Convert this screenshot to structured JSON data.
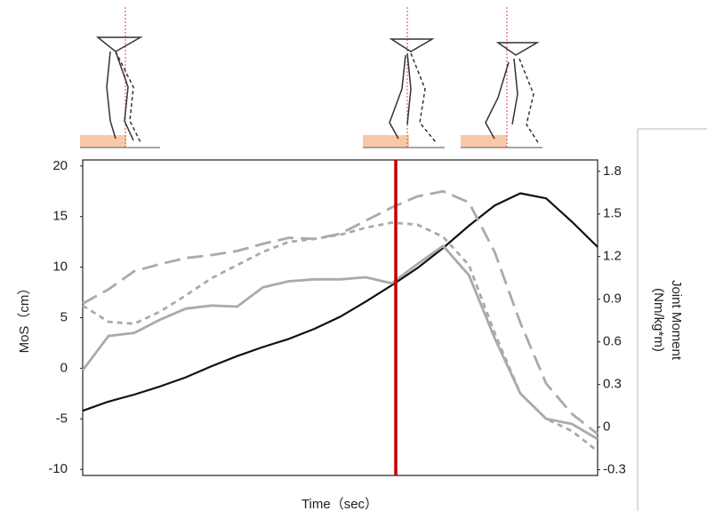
{
  "chart_data": {
    "type": "line",
    "ylabel": "MoS（cm）",
    "y2label_lines": [
      "Joint Moment",
      "(Nm/kg*m)"
    ],
    "xlabel": "Time（sec）",
    "ylim": [
      -10.6,
      20.6
    ],
    "yticks": [
      20,
      15,
      10,
      5,
      0,
      -5,
      -10
    ],
    "y2lim": [
      -0.34,
      1.88
    ],
    "y2ticks": [
      1.8,
      1.5,
      1.2,
      0.9,
      0.6,
      0.3,
      0,
      -0.3
    ],
    "series": [
      {
        "color": "#111111",
        "dash": "solid",
        "values": [
          -4.2,
          -3.3,
          -2.6,
          -1.8,
          -0.9,
          0.2,
          1.2,
          2.1,
          2.9,
          3.9,
          5.1,
          6.6,
          8.2,
          9.9,
          11.9,
          14.1,
          16.1,
          17.3,
          16.8,
          14.5,
          12.0
        ]
      },
      {
        "color": "#aaaaaa",
        "dash": "solid",
        "values": [
          -0.2,
          3.2,
          3.5,
          4.8,
          5.9,
          6.2,
          6.1,
          8.0,
          8.6,
          8.8,
          8.8,
          9.0,
          8.4,
          10.3,
          12.1,
          9.2,
          3.0,
          -2.5,
          -5.0,
          -5.5,
          -7.0
        ]
      },
      {
        "color": "#aaaaaa",
        "dash": "short",
        "values": [
          6.2,
          4.6,
          4.4,
          5.6,
          7.2,
          8.9,
          10.2,
          11.5,
          12.5,
          12.8,
          13.2,
          13.9,
          14.4,
          14.2,
          13.0,
          10.2,
          3.5,
          -2.5,
          -5.0,
          -6.2,
          -8.2
        ]
      },
      {
        "color": "#aaaaaa",
        "dash": "long",
        "values": [
          6.4,
          7.8,
          9.6,
          10.3,
          10.9,
          11.2,
          11.6,
          12.3,
          12.9,
          12.8,
          13.3,
          14.6,
          15.9,
          17.0,
          17.5,
          16.4,
          11.5,
          4.5,
          -1.5,
          -4.5,
          -6.5
        ]
      }
    ]
  }
}
